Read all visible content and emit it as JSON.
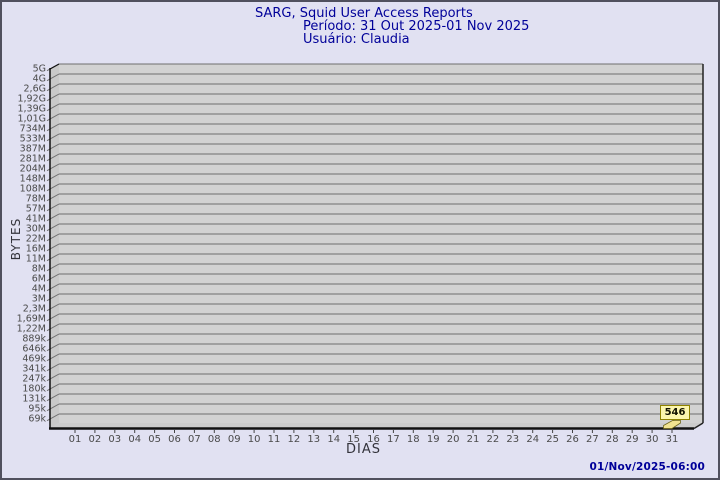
{
  "title": {
    "line1": "SARG, Squid User Access Reports",
    "line2": "Período: 31 Out 2025-01 Nov 2025",
    "line3": "Usuário: Claudia"
  },
  "footer": {
    "timestamp": "01/Nov/2025-06:00"
  },
  "colors": {
    "page_background": "#e1e1f2",
    "title_text": "#000099",
    "plot_background": "#d2d2d2",
    "plot_wall": "#c9c9c9",
    "grid_line": "#6e6e6e",
    "axis_line": "#111111",
    "tick_text": "#4a4a4a",
    "bar_fill": "#f1e390",
    "bar_edge": "#6b6316",
    "tooltip_background": "#fcf6ae",
    "tooltip_border": "#8f8200",
    "timestamp_text": "#000099"
  },
  "chart_data": {
    "type": "bar",
    "title": "SARG, Squid User Access Reports",
    "subtitle": "Período: 31 Out 2025-01 Nov 2025",
    "user": "Usuário: Claudia",
    "xlabel": "DIAS",
    "ylabel": "BYTES",
    "scale": "log",
    "grid": true,
    "legend_position": "none",
    "ylim_labels": [
      "69k",
      "5G"
    ],
    "y_tick_labels": [
      "5G",
      "4G",
      "2,6G",
      "1,92G",
      "1,39G",
      "1,01G",
      "734M",
      "533M",
      "387M",
      "281M",
      "204M",
      "148M",
      "108M",
      "78M",
      "57M",
      "41M",
      "30M",
      "22M",
      "16M",
      "11M",
      "8M",
      "6M",
      "4M",
      "3M",
      "2,3M",
      "1,69M",
      "1,22M",
      "889k",
      "646k",
      "469k",
      "341k",
      "247k",
      "180k",
      "131k",
      "95k",
      "69k"
    ],
    "x_tick_labels": [
      "01",
      "02",
      "03",
      "04",
      "05",
      "06",
      "07",
      "08",
      "09",
      "10",
      "11",
      "12",
      "13",
      "14",
      "15",
      "16",
      "17",
      "18",
      "19",
      "20",
      "21",
      "22",
      "23",
      "24",
      "25",
      "26",
      "27",
      "28",
      "29",
      "30",
      "31"
    ],
    "series": [
      {
        "name": "Claudia",
        "values": [
          0,
          0,
          0,
          0,
          0,
          0,
          0,
          0,
          0,
          0,
          0,
          0,
          0,
          0,
          0,
          0,
          0,
          0,
          0,
          0,
          0,
          0,
          0,
          0,
          0,
          0,
          0,
          0,
          0,
          0,
          546
        ]
      }
    ],
    "annotation": {
      "day": "31",
      "text": "546",
      "value_bytes": 546
    }
  }
}
